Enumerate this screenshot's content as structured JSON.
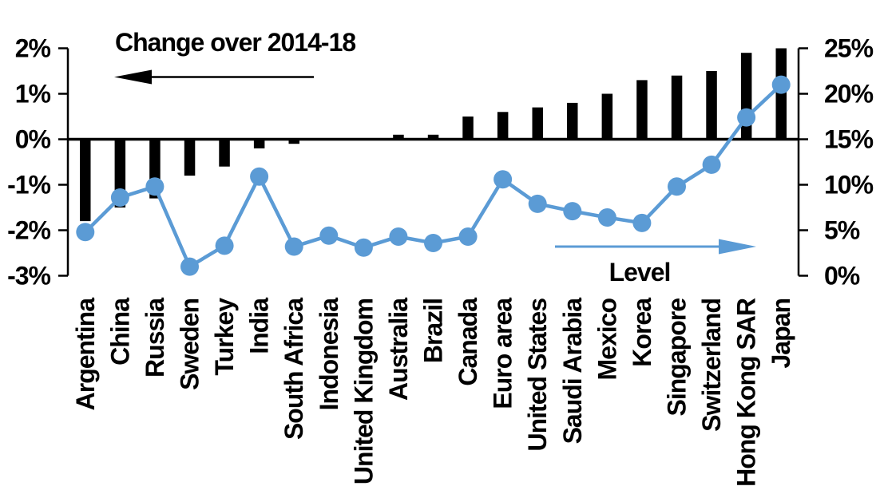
{
  "chart_data": {
    "type": "combo-bar-line",
    "title": "",
    "categories": [
      "Argentina",
      "China",
      "Russia",
      "Sweden",
      "Turkey",
      "India",
      "South Africa",
      "Indonesia",
      "United Kingdom",
      "Australia",
      "Brazil",
      "Canada",
      "Euro area",
      "United States",
      "Saudi Arabia",
      "Mexico",
      "Korea",
      "Singapore",
      "Switzerland",
      "Hong Kong SAR",
      "Japan"
    ],
    "series": [
      {
        "name": "Change over 2014-18",
        "type": "bar",
        "axis": "left",
        "color": "#000000",
        "unit": "%",
        "values": [
          -1.8,
          -1.5,
          -1.3,
          -0.8,
          -0.6,
          -0.2,
          -0.1,
          0,
          0,
          0.1,
          0.1,
          0.5,
          0.6,
          0.7,
          0.8,
          1.0,
          1.3,
          1.4,
          1.5,
          1.9,
          2.0
        ]
      },
      {
        "name": "Level",
        "type": "line",
        "axis": "right",
        "color": "#5B9BD5",
        "unit": "%",
        "values": [
          4.8,
          8.6,
          9.8,
          1.0,
          3.3,
          10.9,
          3.2,
          4.4,
          3.1,
          4.3,
          3.6,
          4.3,
          10.6,
          7.9,
          7.1,
          6.4,
          5.8,
          9.8,
          12.2,
          17.4,
          21.0
        ]
      }
    ],
    "left_axis": {
      "tick_labels": [
        "2%",
        "1%",
        "0%",
        "-1%",
        "-2%",
        "-3%"
      ],
      "tick_values": [
        2,
        1,
        0,
        -1,
        -2,
        -3
      ],
      "range": [
        -3,
        2
      ]
    },
    "right_axis": {
      "tick_labels": [
        "25%",
        "20%",
        "15%",
        "10%",
        "5%",
        "0%"
      ],
      "tick_values": [
        25,
        20,
        15,
        10,
        5,
        0
      ],
      "range": [
        0,
        25
      ]
    },
    "annotations": {
      "bar_series_label": "Change over 2014-18",
      "bar_arrow_direction": "left",
      "line_series_label": "Level",
      "line_arrow_direction": "right"
    },
    "legend_position": "none",
    "grid": false,
    "background": "#FFFFFF"
  }
}
